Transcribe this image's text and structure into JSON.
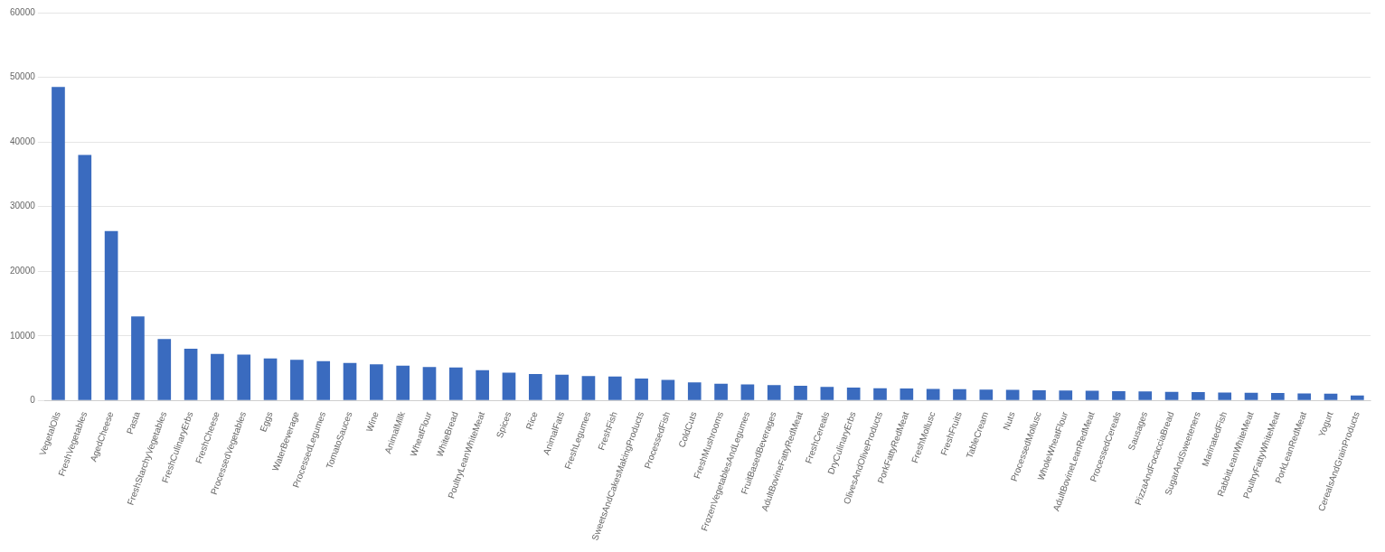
{
  "chart_data": {
    "type": "bar",
    "categories": [
      "VegetalOils",
      "FreshVegetables",
      "AgedCheese",
      "Pasta",
      "FreshStarchyVegetables",
      "FreshCulinaryErbs",
      "FreshCheese",
      "ProcessedVegetables",
      "Eggs",
      "WaterBeverage",
      "ProcessedLegumes",
      "TomatoSauces",
      "Wine",
      "AnimalMilk",
      "WheatFlour",
      "WhiteBread",
      "PoultryLeanWhiteMeat",
      "Spices",
      "Rice",
      "AnimalFats",
      "FreshLegumes",
      "FreshFish",
      "SweetsAndCakesMakingProducts",
      "ProcessedFish",
      "ColdCuts",
      "FreshMushrooms",
      "FrozenVegetablesAndLegumes",
      "FruitBasedBeverages",
      "AdultBovineFattyRedMeat",
      "FreshCereals",
      "DryCulinaryErbs",
      "OlivesAndOliveProducts",
      "PorkFattyRedMeat",
      "FreshMollusc",
      "FreshFruits",
      "TableCream",
      "Nuts",
      "ProcessedMollusc",
      "WholeWheatFlour",
      "AdultBovineLeanRedMeat",
      "ProcessedCereals",
      "Sausages",
      "PizzaAndFocacciaBread",
      "SugarAndSweeteners",
      "MarinatedFish",
      "RabbitLeanWhiteMeat",
      "PoultryFattyWhiteMeat",
      "PorkLeanRedMeat",
      "Yogurt",
      "CerealsAndGrainProducts"
    ],
    "values": [
      48500,
      38000,
      26200,
      13000,
      9500,
      8000,
      7200,
      7100,
      6500,
      6300,
      6100,
      5800,
      5600,
      5400,
      5200,
      5100,
      4700,
      4300,
      4100,
      4000,
      3800,
      3700,
      3400,
      3200,
      2800,
      2600,
      2500,
      2400,
      2300,
      2100,
      2000,
      1900,
      1850,
      1800,
      1750,
      1700,
      1650,
      1600,
      1550,
      1500,
      1450,
      1400,
      1350,
      1300,
      1250,
      1200,
      1150,
      1100,
      1050,
      800
    ],
    "color": "#3a6bbf",
    "ylim": [
      0,
      60000
    ],
    "yticks": [
      0,
      10000,
      20000,
      30000,
      40000,
      50000,
      60000
    ],
    "grid": true
  }
}
